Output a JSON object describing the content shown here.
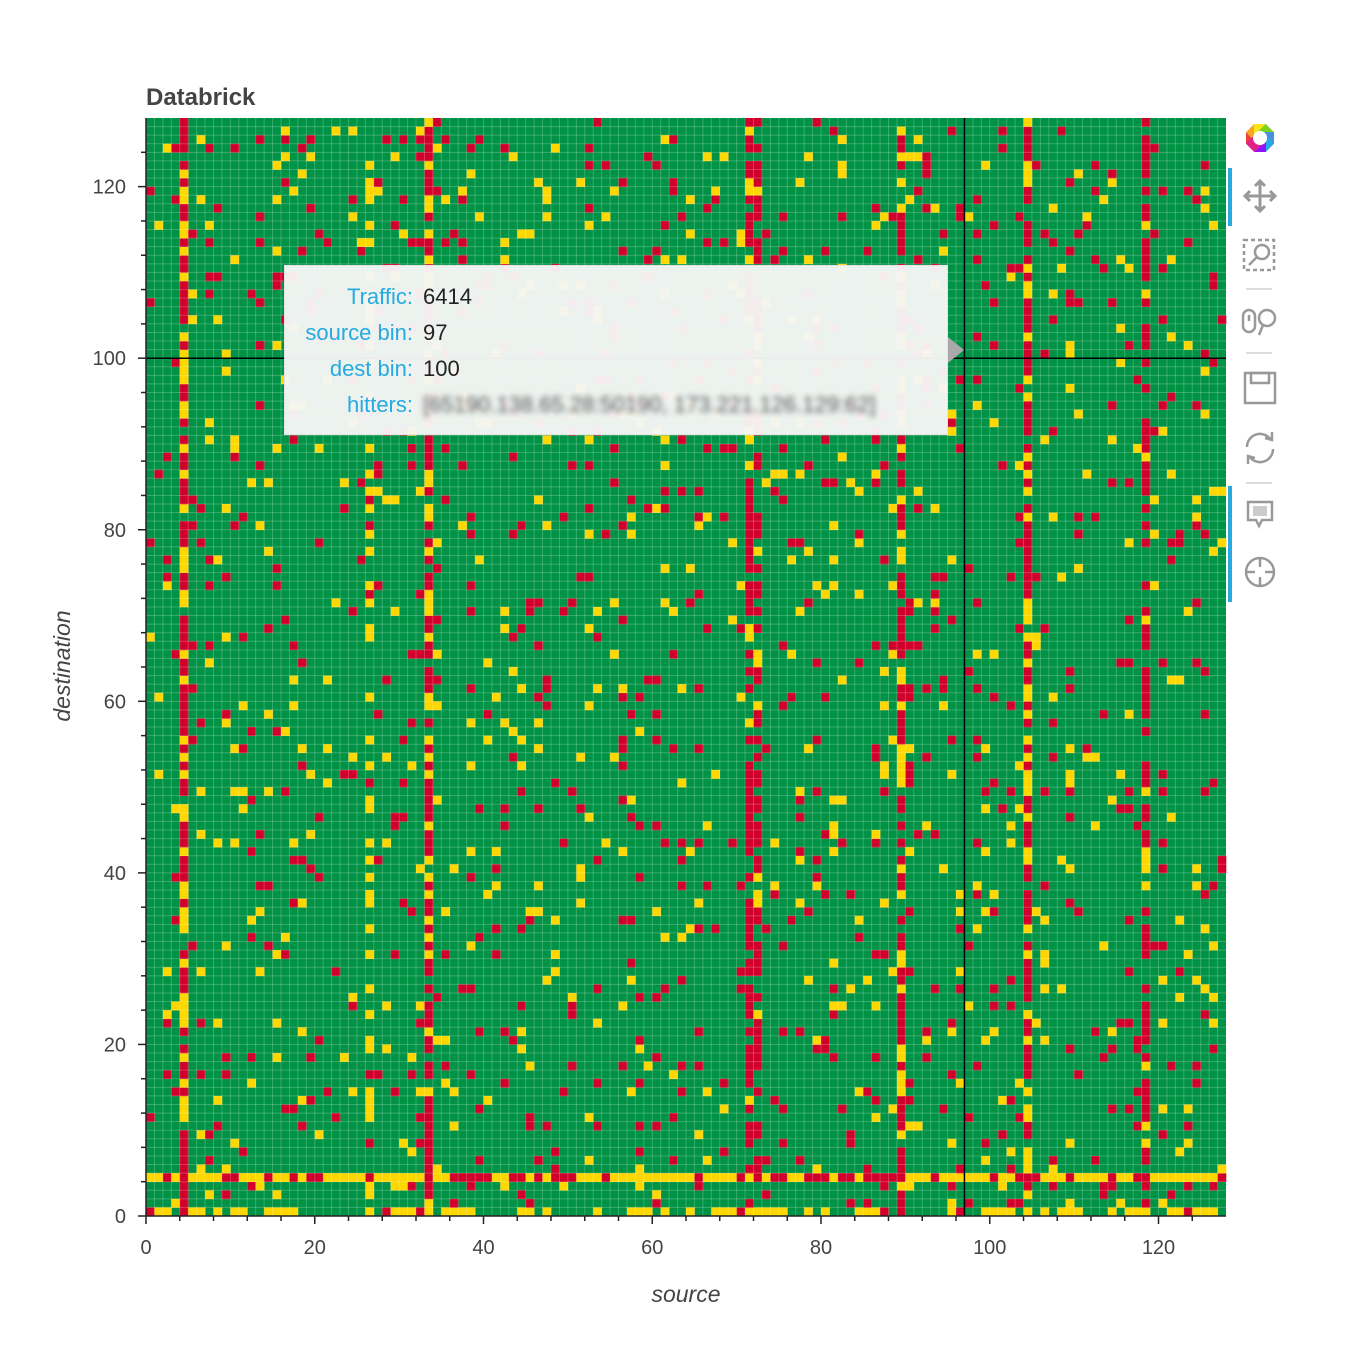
{
  "chart_data": {
    "type": "heatmap",
    "title": "Databrick",
    "xlabel": "source",
    "ylabel": "destination",
    "xlim": [
      0,
      127
    ],
    "ylim": [
      0,
      127
    ],
    "x_ticks": [
      "0",
      "20",
      "40",
      "60",
      "80",
      "100",
      "120"
    ],
    "y_ticks": [
      "0",
      "20",
      "40",
      "60",
      "80",
      "100",
      "120"
    ],
    "colors": {
      "low": "#009245",
      "medium": "#ffd700",
      "high": "#d1002b"
    },
    "crosshair": {
      "x": 97,
      "y": 100
    },
    "dense_high_columns": [
      4,
      33,
      71,
      72,
      89,
      104,
      118
    ],
    "dense_medium_columns": [
      4,
      26,
      33,
      89,
      104
    ],
    "dense_high_rows": [
      4
    ],
    "dense_medium_rows": [
      0,
      4
    ]
  },
  "tooltip": {
    "rows": [
      {
        "key": "Traffic:",
        "value": "6414"
      },
      {
        "key": "source bin:",
        "value": "97"
      },
      {
        "key": "dest bin:",
        "value": "100"
      },
      {
        "key": "hitters:",
        "value": "[65190.138.65.28:50190, 173.221.126.129:62]"
      }
    ]
  },
  "toolbar": {
    "tools": [
      {
        "name": "bokeh-logo-icon"
      },
      {
        "name": "pan-icon"
      },
      {
        "name": "box-zoom-icon"
      },
      {
        "name": "wheel-zoom-icon"
      },
      {
        "name": "save-icon"
      },
      {
        "name": "reset-icon"
      },
      {
        "name": "hover-icon"
      },
      {
        "name": "crosshair-icon"
      }
    ]
  }
}
